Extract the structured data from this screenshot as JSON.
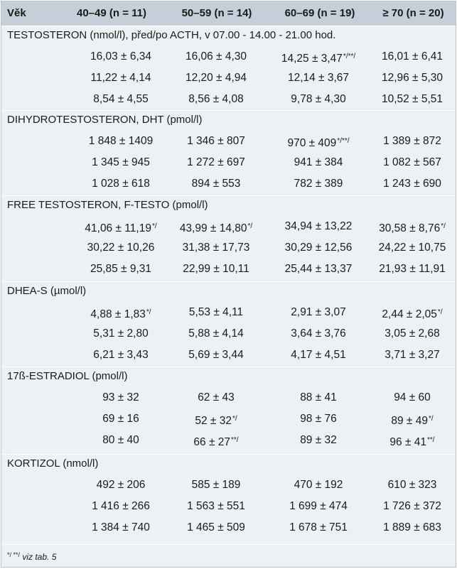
{
  "header": {
    "age_label": "Věk",
    "groups": [
      "40–49 (n = 11)",
      "50–59 (n = 14)",
      "60–69 (n = 19)",
      "≥ 70 (n = 20)"
    ]
  },
  "sections": [
    {
      "title": "TESTOSTERON (nmol/l), před/po ACTH, v 07.00 - 14.00 - 21.00 hod.",
      "rows": [
        [
          {
            "v": "16,03 ± 6,34",
            "m": ""
          },
          {
            "v": "16,06 ± 4,30",
            "m": ""
          },
          {
            "v": "14,25 ± 3,47",
            "m": "*/**/"
          },
          {
            "v": "16,01 ± 6,41",
            "m": ""
          }
        ],
        [
          {
            "v": "11,22 ± 4,14",
            "m": ""
          },
          {
            "v": "12,20 ± 4,94",
            "m": ""
          },
          {
            "v": "12,14 ± 3,67",
            "m": ""
          },
          {
            "v": "12,96 ± 5,30",
            "m": ""
          }
        ],
        [
          {
            "v": "8,54 ± 4,55",
            "m": ""
          },
          {
            "v": "8,56 ± 4,08",
            "m": ""
          },
          {
            "v": "9,78 ± 4,30",
            "m": ""
          },
          {
            "v": "10,52 ± 5,51",
            "m": ""
          }
        ]
      ]
    },
    {
      "title": "DIHYDROTESTOSTERON, DHT (pmol/l)",
      "rows": [
        [
          {
            "v": "1 848 ± 1409",
            "m": ""
          },
          {
            "v": "1 346 ± 807",
            "m": ""
          },
          {
            "v": "970 ± 409",
            "m": "*/**/"
          },
          {
            "v": "1 389 ± 872",
            "m": ""
          }
        ],
        [
          {
            "v": "1 345 ± 945",
            "m": ""
          },
          {
            "v": "1 272 ± 697",
            "m": ""
          },
          {
            "v": "941 ± 384",
            "m": ""
          },
          {
            "v": "1 082 ± 567",
            "m": ""
          }
        ],
        [
          {
            "v": "1 028 ± 618",
            "m": ""
          },
          {
            "v": "894 ± 553",
            "m": ""
          },
          {
            "v": "782 ± 389",
            "m": ""
          },
          {
            "v": "1 243 ± 690",
            "m": ""
          }
        ]
      ]
    },
    {
      "title": "FREE  TESTOSTERON, F-TESTO (pmol/l)",
      "rows": [
        [
          {
            "v": "41,06 ± 11,19",
            "m": "*/"
          },
          {
            "v": "43,99 ± 14,80",
            "m": "*/"
          },
          {
            "v": "34,94 ± 13,22",
            "m": ""
          },
          {
            "v": "30,58 ± 8,76",
            "m": "*/"
          }
        ],
        [
          {
            "v": "30,22 ± 10,26",
            "m": ""
          },
          {
            "v": "31,38 ± 17,73",
            "m": ""
          },
          {
            "v": "30,29 ± 12,56",
            "m": ""
          },
          {
            "v": "24,22 ± 10,75",
            "m": ""
          }
        ],
        [
          {
            "v": "25,85 ± 9,31",
            "m": ""
          },
          {
            "v": "22,99 ± 10,11",
            "m": ""
          },
          {
            "v": "25,44 ± 13,37",
            "m": ""
          },
          {
            "v": "21,93 ± 11,91",
            "m": ""
          }
        ]
      ]
    },
    {
      "title": "DHEA-S (µmol/l)",
      "rows": [
        [
          {
            "v": "4,88 ± 1,83",
            "m": "*/"
          },
          {
            "v": "5,53 ± 4,11",
            "m": ""
          },
          {
            "v": "2,91 ± 3,07",
            "m": ""
          },
          {
            "v": "2,44 ± 2,05",
            "m": "*/"
          }
        ],
        [
          {
            "v": "5,31 ± 2,80",
            "m": ""
          },
          {
            "v": "5,88 ± 4,14",
            "m": ""
          },
          {
            "v": "3,64 ± 3,76",
            "m": ""
          },
          {
            "v": "3,05 ± 2,68",
            "m": ""
          }
        ],
        [
          {
            "v": "6,21 ± 3,43",
            "m": ""
          },
          {
            "v": "5,69 ± 3,44",
            "m": ""
          },
          {
            "v": "4,17 ± 4,51",
            "m": ""
          },
          {
            "v": "3,71 ± 3,27",
            "m": ""
          }
        ]
      ]
    },
    {
      "title": "17ß-ESTRADIOL (pmol/l)",
      "rows": [
        [
          {
            "v": "93 ± 32",
            "m": ""
          },
          {
            "v": "62 ± 43",
            "m": ""
          },
          {
            "v": "88 ± 41",
            "m": ""
          },
          {
            "v": "94 ± 60",
            "m": ""
          }
        ],
        [
          {
            "v": "69 ± 16",
            "m": ""
          },
          {
            "v": "52 ± 32",
            "m": "*/"
          },
          {
            "v": "98 ± 76",
            "m": ""
          },
          {
            "v": "89 ± 49",
            "m": "*/"
          }
        ],
        [
          {
            "v": "80 ± 40",
            "m": ""
          },
          {
            "v": "66 ± 27",
            "m": "**/"
          },
          {
            "v": "89 ± 32",
            "m": ""
          },
          {
            "v": "96 ± 41",
            "m": "**/"
          }
        ]
      ]
    },
    {
      "title": "KORTIZOL (nmol/l)",
      "rows": [
        [
          {
            "v": "492 ± 206",
            "m": ""
          },
          {
            "v": "585 ± 189",
            "m": ""
          },
          {
            "v": "470 ± 192",
            "m": ""
          },
          {
            "v": "610 ± 323",
            "m": ""
          }
        ],
        [
          {
            "v": "1 416 ± 266",
            "m": ""
          },
          {
            "v": "1 563 ± 551",
            "m": ""
          },
          {
            "v": "1 699 ± 474",
            "m": ""
          },
          {
            "v": "1 726 ± 372",
            "m": ""
          }
        ],
        [
          {
            "v": "1 384 ± 740",
            "m": ""
          },
          {
            "v": "1 465 ± 509",
            "m": ""
          },
          {
            "v": "1 678 ± 751",
            "m": ""
          },
          {
            "v": "1 889 ± 683",
            "m": ""
          }
        ]
      ]
    }
  ],
  "footnote": {
    "marks": "*/ **/",
    "text": " viz tab. 5"
  }
}
